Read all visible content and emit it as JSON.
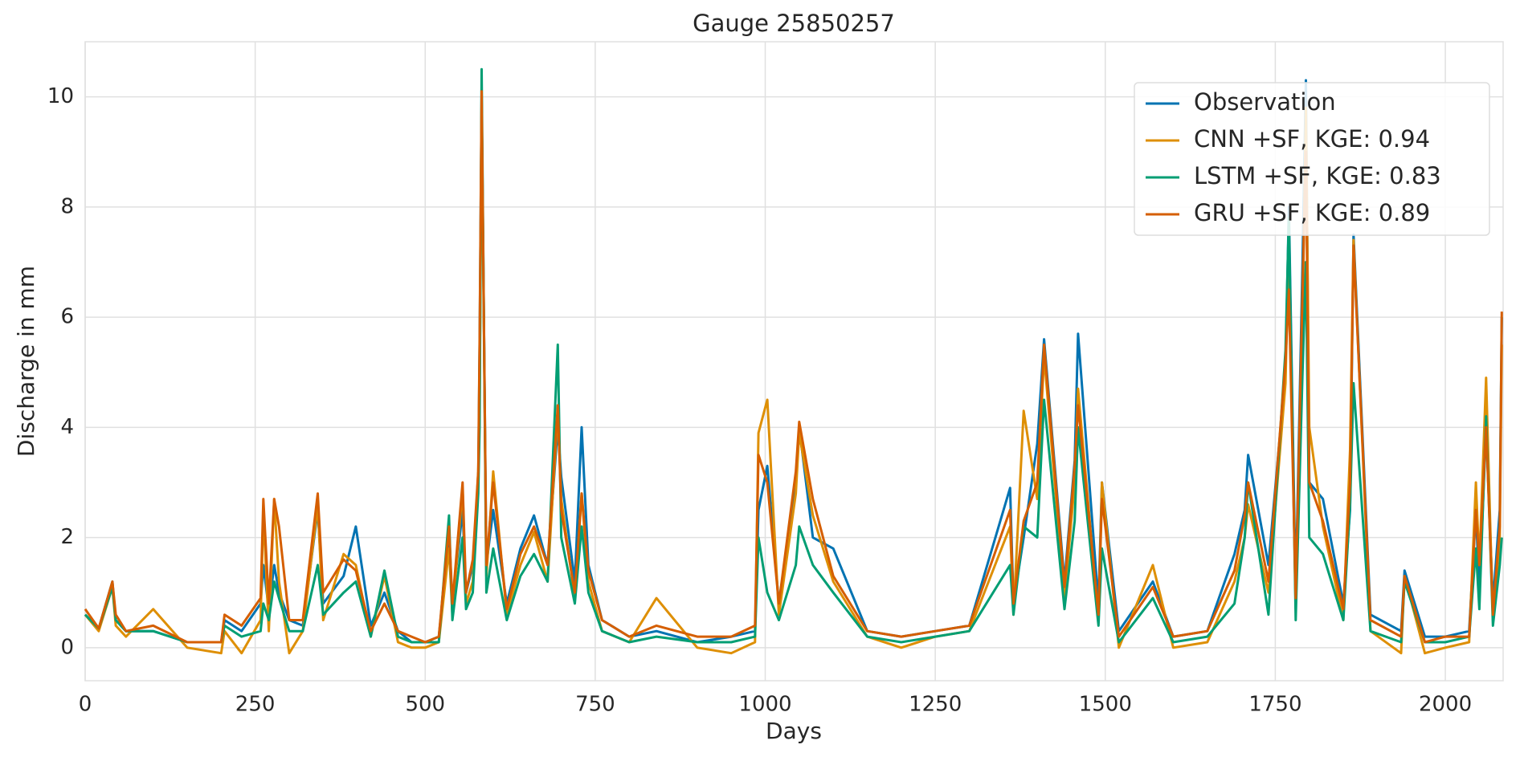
{
  "chart_data": {
    "type": "line",
    "title": "Gauge 25850257",
    "x_label": "Days",
    "y_label": "Discharge in mm",
    "x": [
      0,
      20,
      40,
      45,
      60,
      100,
      150,
      200,
      205,
      230,
      258,
      262,
      270,
      278,
      285,
      300,
      320,
      342,
      350,
      380,
      398,
      420,
      440,
      460,
      480,
      500,
      520,
      535,
      540,
      555,
      560,
      570,
      578,
      580,
      583,
      590,
      600,
      620,
      640,
      660,
      680,
      695,
      700,
      720,
      730,
      740,
      760,
      800,
      840,
      900,
      950,
      985,
      990,
      1003,
      1020,
      1045,
      1050,
      1070,
      1100,
      1150,
      1200,
      1250,
      1300,
      1360,
      1365,
      1380,
      1400,
      1410,
      1440,
      1455,
      1460,
      1490,
      1495,
      1520,
      1570,
      1600,
      1650,
      1690,
      1705,
      1710,
      1740,
      1765,
      1770,
      1780,
      1790,
      1795,
      1800,
      1820,
      1850,
      1860,
      1865,
      1890,
      1935,
      1940,
      1970,
      2000,
      2035,
      2045,
      2050,
      2060,
      2070,
      2080,
      2083
    ],
    "series": [
      {
        "name": "Observation",
        "color": "#0173b2",
        "values": [
          0.6,
          0.35,
          1.2,
          0.5,
          0.3,
          0.3,
          0.1,
          0.1,
          0.5,
          0.3,
          0.8,
          1.5,
          0.7,
          1.5,
          1.0,
          0.5,
          0.4,
          2.5,
          0.8,
          1.3,
          2.2,
          0.4,
          1.0,
          0.3,
          0.1,
          0.1,
          0.2,
          2.0,
          0.8,
          2.5,
          1.0,
          1.5,
          3.0,
          5.5,
          10.0,
          1.5,
          2.5,
          0.8,
          1.8,
          2.4,
          1.5,
          4.0,
          3.1,
          1.2,
          4.0,
          1.5,
          0.5,
          0.2,
          0.3,
          0.1,
          0.2,
          0.3,
          2.5,
          3.3,
          0.8,
          3.0,
          4.0,
          2.0,
          1.8,
          0.3,
          0.2,
          0.3,
          0.4,
          2.9,
          0.8,
          2.0,
          3.7,
          5.6,
          1.2,
          3.4,
          5.7,
          0.8,
          3.0,
          0.3,
          1.2,
          0.2,
          0.3,
          1.7,
          2.5,
          3.5,
          1.5,
          5.0,
          8.0,
          1.0,
          7.0,
          10.3,
          3.0,
          2.7,
          0.8,
          2.5,
          7.5,
          0.6,
          0.3,
          1.4,
          0.2,
          0.2,
          0.3,
          2.5,
          1.0,
          4.0,
          0.8,
          2.5,
          6.0
        ]
      },
      {
        "name": "CNN +SF, KGE: 0.94",
        "color": "#de8f05",
        "values": [
          0.6,
          0.3,
          1.1,
          0.4,
          0.2,
          0.7,
          0.0,
          -0.1,
          0.3,
          -0.1,
          0.5,
          2.5,
          0.3,
          2.7,
          1.2,
          -0.1,
          0.3,
          2.6,
          0.5,
          1.7,
          1.5,
          0.2,
          1.3,
          0.1,
          0.0,
          0.0,
          0.1,
          1.8,
          0.6,
          2.9,
          0.8,
          1.2,
          3.2,
          4.5,
          9.8,
          1.3,
          3.2,
          0.6,
          1.5,
          2.1,
          1.2,
          4.3,
          2.7,
          0.9,
          2.8,
          1.2,
          0.3,
          0.1,
          0.9,
          0.0,
          -0.1,
          0.1,
          3.9,
          4.5,
          0.6,
          2.8,
          3.9,
          2.4,
          1.2,
          0.2,
          0.0,
          0.2,
          0.3,
          2.2,
          0.6,
          4.3,
          2.7,
          5.3,
          0.9,
          3.0,
          4.7,
          0.5,
          3.0,
          0.0,
          1.5,
          0.0,
          0.1,
          1.2,
          2.0,
          2.6,
          1.0,
          4.8,
          7.5,
          0.7,
          6.0,
          9.8,
          4.0,
          2.2,
          0.5,
          3.6,
          7.4,
          0.3,
          -0.1,
          1.3,
          -0.1,
          0.0,
          0.1,
          3.0,
          1.5,
          4.9,
          0.5,
          2.0,
          5.5
        ]
      },
      {
        "name": "LSTM +SF, KGE: 0.83",
        "color": "#029e73",
        "values": [
          0.6,
          0.35,
          1.1,
          0.5,
          0.3,
          0.3,
          0.1,
          0.1,
          0.4,
          0.2,
          0.3,
          0.8,
          0.5,
          1.2,
          0.9,
          0.3,
          0.3,
          1.5,
          0.6,
          1.0,
          1.2,
          0.2,
          1.4,
          0.2,
          0.1,
          0.1,
          0.1,
          2.4,
          0.5,
          2.0,
          0.7,
          1.0,
          2.8,
          4.0,
          10.5,
          1.0,
          1.8,
          0.5,
          1.3,
          1.7,
          1.2,
          5.5,
          2.0,
          0.8,
          2.2,
          1.0,
          0.3,
          0.1,
          0.2,
          0.1,
          0.1,
          0.2,
          2.0,
          1.0,
          0.5,
          1.5,
          2.2,
          1.5,
          1.0,
          0.2,
          0.1,
          0.2,
          0.3,
          1.5,
          0.6,
          2.2,
          2.0,
          4.5,
          0.7,
          2.3,
          4.0,
          0.4,
          1.8,
          0.1,
          0.9,
          0.1,
          0.2,
          0.8,
          2.0,
          3.0,
          0.6,
          5.4,
          7.8,
          0.5,
          5.0,
          7.0,
          2.0,
          1.7,
          0.5,
          2.6,
          4.8,
          0.3,
          0.1,
          1.2,
          0.1,
          0.1,
          0.2,
          1.8,
          0.7,
          4.2,
          0.4,
          1.5,
          2.0
        ]
      },
      {
        "name": "GRU +SF, KGE: 0.89",
        "color": "#d55e00",
        "values": [
          0.7,
          0.35,
          1.2,
          0.6,
          0.3,
          0.4,
          0.1,
          0.1,
          0.6,
          0.4,
          0.9,
          2.7,
          0.8,
          2.7,
          2.2,
          0.5,
          0.5,
          2.8,
          1.0,
          1.6,
          1.4,
          0.3,
          0.8,
          0.3,
          0.2,
          0.1,
          0.2,
          2.2,
          0.8,
          3.0,
          1.0,
          1.6,
          3.2,
          5.6,
          10.1,
          1.5,
          3.0,
          0.7,
          1.7,
          2.2,
          1.5,
          4.4,
          2.5,
          1.0,
          2.8,
          1.4,
          0.5,
          0.2,
          0.4,
          0.2,
          0.2,
          0.4,
          3.5,
          3.0,
          0.8,
          3.2,
          4.1,
          2.7,
          1.3,
          0.3,
          0.2,
          0.3,
          0.4,
          2.5,
          0.8,
          2.3,
          3.0,
          5.5,
          1.1,
          3.3,
          4.4,
          0.6,
          2.7,
          0.2,
          1.1,
          0.2,
          0.3,
          1.4,
          2.4,
          3.0,
          1.2,
          5.2,
          6.5,
          0.9,
          6.5,
          9.0,
          3.0,
          2.3,
          0.7,
          3.0,
          7.3,
          0.5,
          0.2,
          1.3,
          0.1,
          0.2,
          0.2,
          2.5,
          1.5,
          4.0,
          0.6,
          2.2,
          6.1
        ]
      }
    ],
    "xlim": [
      0,
      2085
    ],
    "ylim": [
      -0.6,
      11.0
    ],
    "xticks": [
      0,
      250,
      500,
      750,
      1000,
      1250,
      1500,
      1750,
      2000
    ],
    "yticks": [
      0,
      2,
      4,
      6,
      8,
      10
    ],
    "grid": true,
    "legend": "upper right"
  }
}
